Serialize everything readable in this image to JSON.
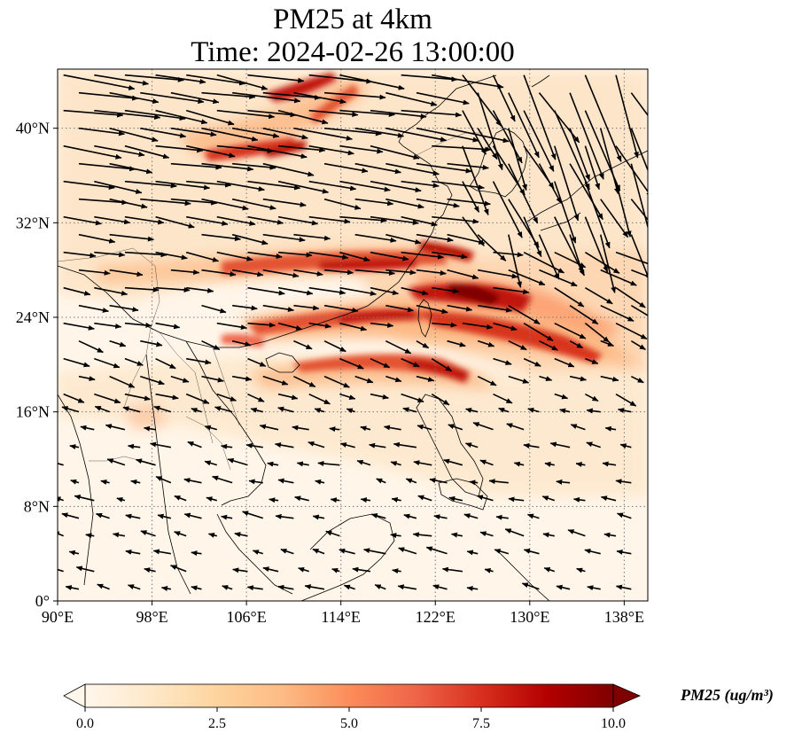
{
  "title": {
    "line1": "PM25 at 4km",
    "line2": "Time: 2024-02-26 13:00:00"
  },
  "map": {
    "projection": "PlateCarree",
    "lon_range": [
      90,
      140
    ],
    "lat_range": [
      0,
      45
    ],
    "gridlines": "dotted",
    "x_ticks": [
      "90°E",
      "98°E",
      "106°E",
      "114°E",
      "122°E",
      "130°E",
      "138°E"
    ],
    "y_ticks": [
      "0°",
      "8°N",
      "16°N",
      "24°N",
      "32°N",
      "40°N"
    ],
    "layers": [
      "PM25 filled contour",
      "wind vectors",
      "coastlines",
      "country borders"
    ]
  },
  "colorbar": {
    "label": "PM25 (ug/m³)",
    "ticks": [
      "0.0",
      "2.5",
      "5.0",
      "7.5",
      "10.0"
    ],
    "range": [
      0,
      10
    ],
    "extend": "both",
    "colormap": "OrRd",
    "stops": [
      "#fff7ec",
      "#fee8c8",
      "#fdd49e",
      "#fdbb84",
      "#fc8d59",
      "#ef6548",
      "#d7301f",
      "#b30000",
      "#7f0000"
    ]
  },
  "chart_data": {
    "type": "heatmap",
    "title": "PM25 at 4km\nTime: 2024-02-26 13:00:00",
    "field": "PM25",
    "units": "ug/m³",
    "xlim": [
      90,
      140
    ],
    "ylim": [
      0,
      45
    ],
    "high_concentration_bands": [
      {
        "lon_start": 108,
        "lat_start": 39,
        "lon_end": 113,
        "lat_end": 44,
        "peak": 10
      },
      {
        "lon_start": 102,
        "lat_start": 37,
        "lon_end": 111,
        "lat_end": 38,
        "peak": 8
      },
      {
        "lon_start": 106,
        "lat_start": 27,
        "lon_end": 125,
        "lat_end": 29,
        "peak": 8
      },
      {
        "lon_start": 118,
        "lat_start": 30,
        "lon_end": 125,
        "lat_end": 29,
        "peak": 8
      },
      {
        "lon_start": 113,
        "lat_start": 24,
        "lon_end": 136,
        "lat_end": 21,
        "peak": 9
      },
      {
        "lon_start": 114,
        "lat_start": 26,
        "lon_end": 130,
        "lat_end": 25,
        "peak": 10
      },
      {
        "lon_start": 110,
        "lat_start": 19,
        "lon_end": 126,
        "lat_end": 18,
        "peak": 7
      }
    ],
    "wind_pattern": "Westerly to north-westerly flow north of 20°N, easterly trade winds south of 18°N"
  }
}
